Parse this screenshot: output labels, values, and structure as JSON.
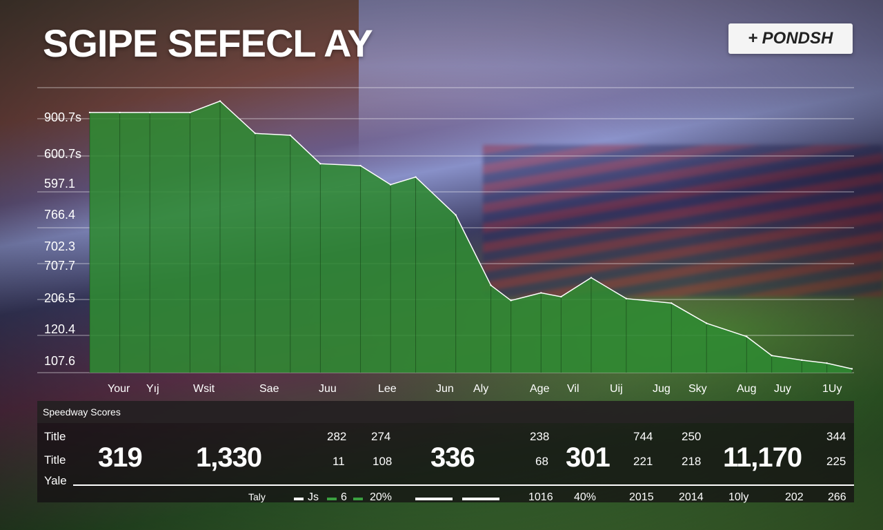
{
  "title": "SGIPE SEFECL AY",
  "badge": {
    "icon": "plus-icon",
    "label": "PONDSH"
  },
  "colors": {
    "fill": "#2f8a32",
    "line": "#ffffff",
    "legend_white": "#ffffff",
    "legend_green": "#3aa040"
  },
  "chart_data": {
    "type": "area",
    "y_tick_labels": [
      "900.7s",
      "600.7s",
      "597.1",
      "766.4",
      "702.3",
      "707.7",
      "206.5",
      "120.4",
      "107.6"
    ],
    "x_tick_labels": [
      "Your",
      "Yıj",
      "Wsit",
      "Sae",
      "Juu",
      "Lee",
      "Jun",
      "Aly",
      "Age",
      "Vil",
      "Uij",
      "Jug",
      "Sky",
      "Aug",
      "Juy",
      "1Uy"
    ],
    "x": [
      0,
      0.6,
      1.2,
      2,
      2.6,
      3.3,
      4,
      4.6,
      5.4,
      6,
      6.5,
      7.3,
      8,
      8.4,
      9,
      9.4,
      10,
      10.7,
      11.6,
      12.3,
      13.1,
      13.6,
      14.2,
      14.7,
      15.2
    ],
    "values": [
      820,
      820,
      820,
      820,
      850,
      765,
      760,
      685,
      680,
      630,
      650,
      550,
      365,
      325,
      345,
      335,
      385,
      330,
      318,
      265,
      230,
      180,
      168,
      160,
      145
    ],
    "ylim": [
      135,
      880
    ],
    "grid": true
  },
  "table": {
    "title": "Speedway Scores",
    "row_labels": [
      "Title",
      "Title",
      "Yale"
    ],
    "cells": [
      {
        "kind": "big",
        "text": "319"
      },
      {
        "kind": "big",
        "text": "1,330"
      },
      {
        "kind": "small",
        "text": "282"
      },
      {
        "kind": "small",
        "text": "274"
      },
      {
        "kind": "small",
        "text": "11"
      },
      {
        "kind": "small",
        "text": "108"
      },
      {
        "kind": "big",
        "text": "336"
      },
      {
        "kind": "small",
        "text": "238"
      },
      {
        "kind": "small",
        "text": "68"
      },
      {
        "kind": "big",
        "text": "301"
      },
      {
        "kind": "small",
        "text": "744"
      },
      {
        "kind": "small",
        "text": "250"
      },
      {
        "kind": "small",
        "text": "221"
      },
      {
        "kind": "small",
        "text": "218"
      },
      {
        "kind": "big",
        "text": "11,170"
      },
      {
        "kind": "small",
        "text": "344"
      },
      {
        "kind": "small",
        "text": "225"
      }
    ],
    "footer": {
      "label": "Taly",
      "legend": [
        {
          "icon": "legend-dash-icon",
          "color": "#ffffff",
          "text": "Js"
        },
        {
          "icon": "legend-dash-icon",
          "color": "#3aa040",
          "text": "6"
        },
        {
          "icon": "legend-dash-icon",
          "color": "#3aa040",
          "text": "20%"
        }
      ],
      "values": [
        "1016",
        "40%",
        "2015",
        "2014",
        "10ly",
        "202",
        "266"
      ]
    }
  }
}
